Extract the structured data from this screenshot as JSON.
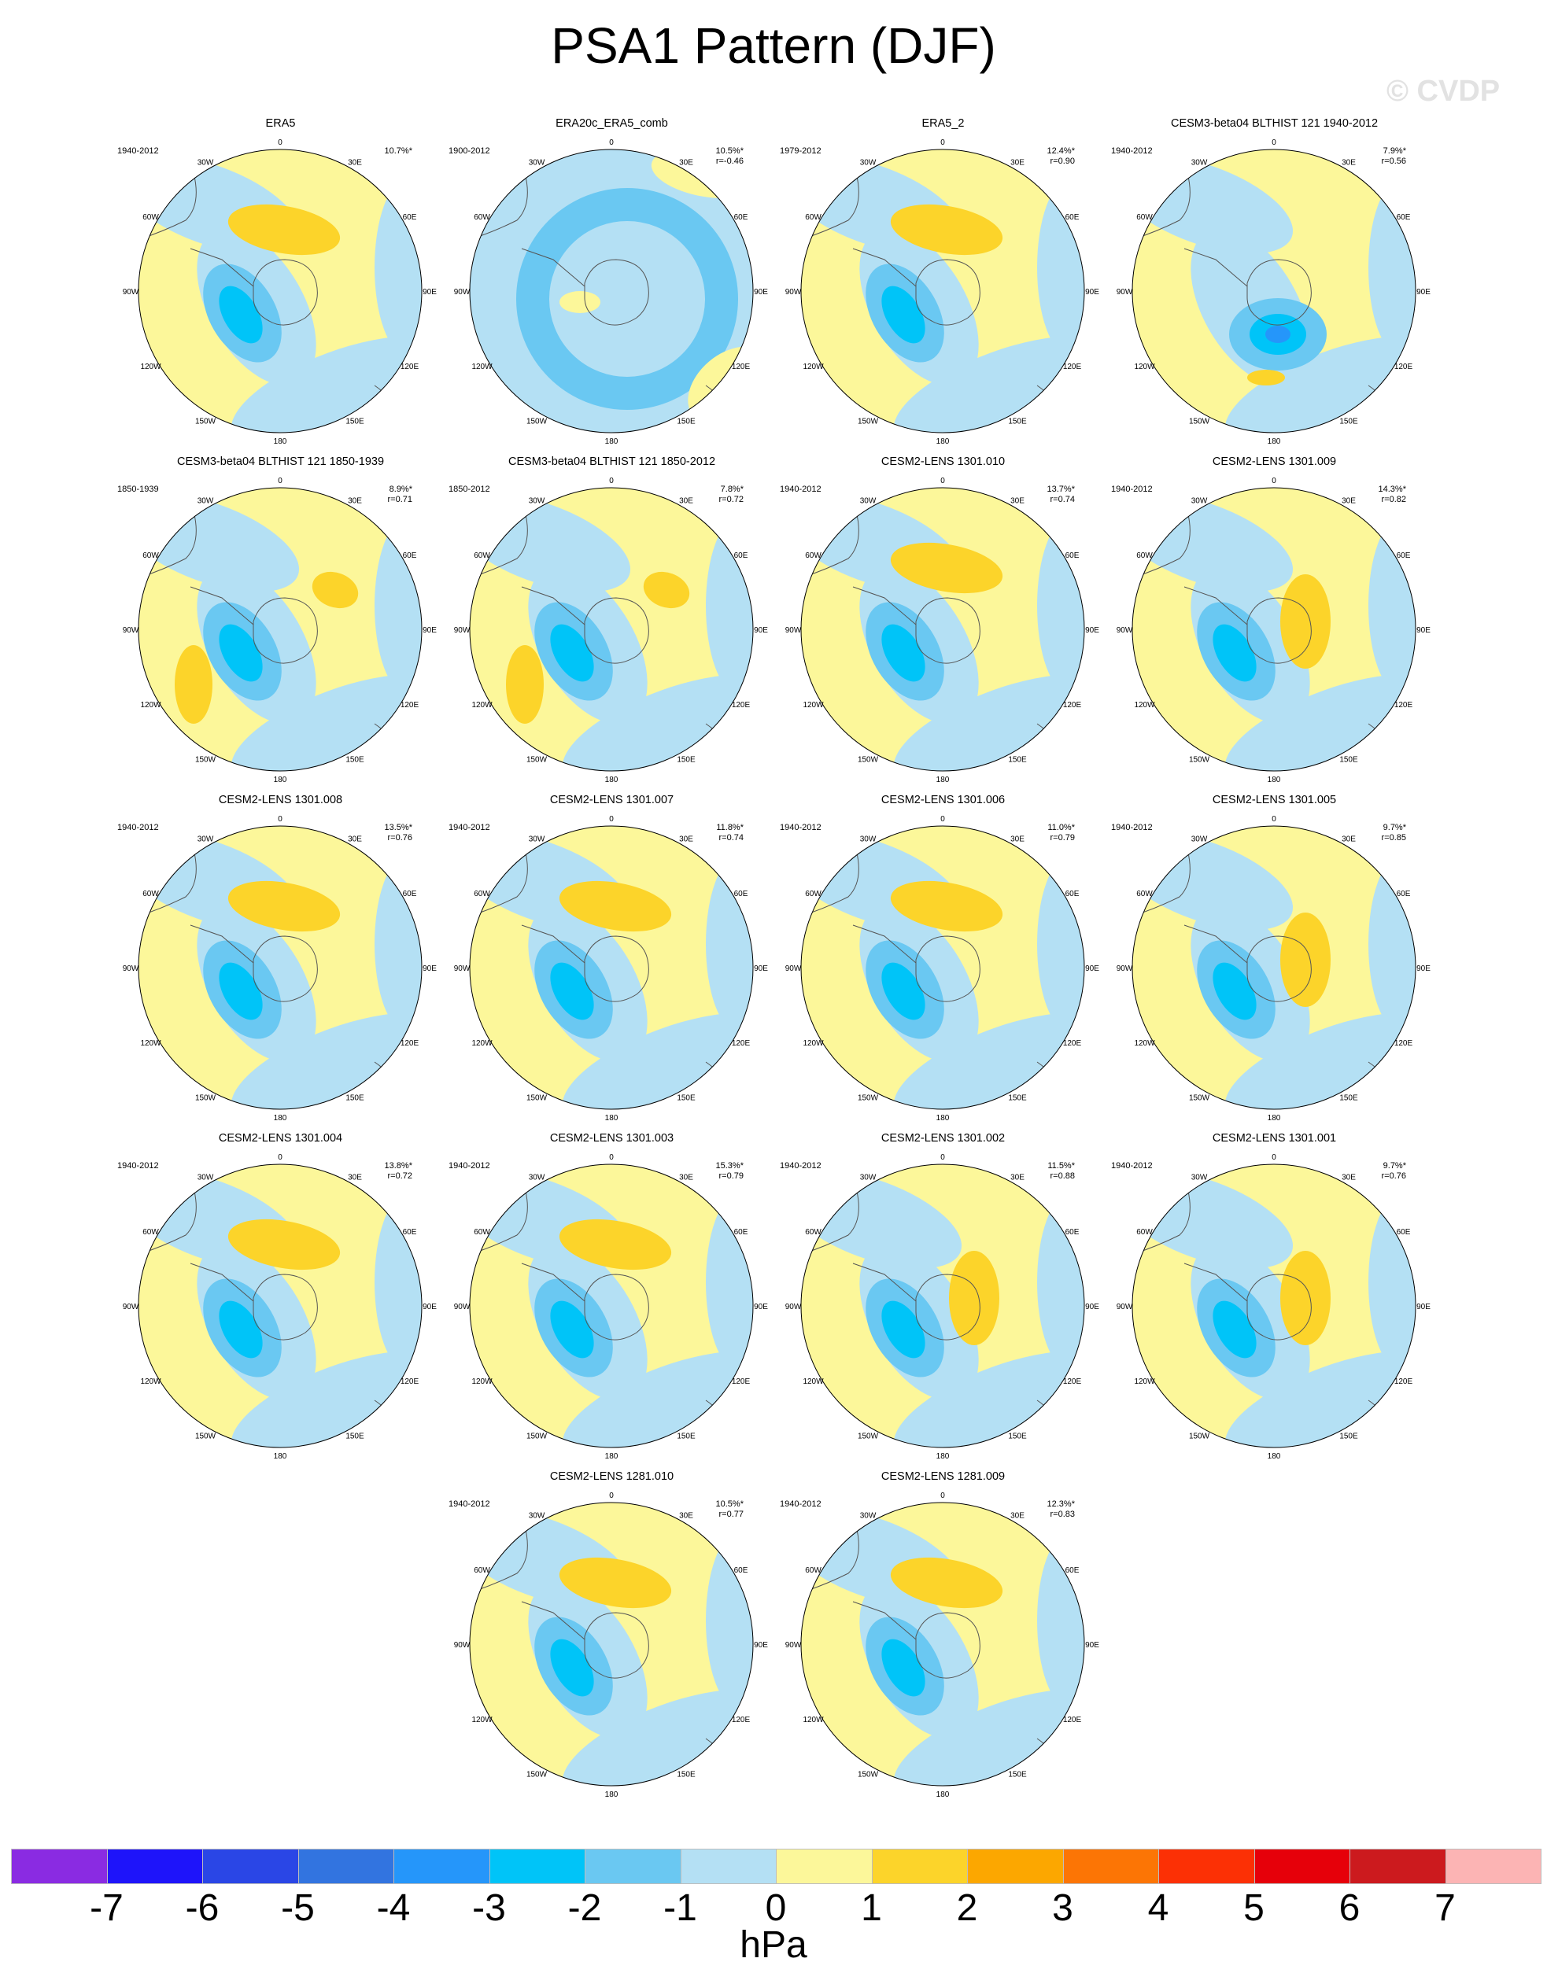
{
  "figure": {
    "title": "PSA1 Pattern (DJF)",
    "watermark": "© CVDP",
    "unit": "hPa"
  },
  "longitude_labels": [
    "0",
    "30E",
    "60E",
    "90E",
    "120E",
    "150E",
    "180",
    "150W",
    "120W",
    "90W",
    "60W",
    "30W"
  ],
  "panels": [
    {
      "title": "ERA5",
      "period": "1940-2012",
      "pct": "10.7%*",
      "r": "",
      "negative_center": "pacific",
      "positive_center": "atlantic"
    },
    {
      "title": "ERA20c_ERA5_comb",
      "period": "1900-2012",
      "pct": "10.5%*",
      "r": "r=-0.46",
      "negative_center": "ring",
      "positive_center": "none"
    },
    {
      "title": "ERA5_2",
      "period": "1979-2012",
      "pct": "12.4%*",
      "r": "r=0.90",
      "negative_center": "pacific",
      "positive_center": "atlantic"
    },
    {
      "title": "CESM3-beta04 BLTHIST 121 1940-2012",
      "period": "1940-2012",
      "pct": "7.9%*",
      "r": "r=0.56",
      "negative_center": "south",
      "positive_center": "weak"
    },
    {
      "title": "CESM3-beta04 BLTHIST 121 1850-1939",
      "period": "1850-1939",
      "pct": "8.9%*",
      "r": "r=0.71",
      "negative_center": "pacific",
      "positive_center": "indian"
    },
    {
      "title": "CESM3-beta04 BLTHIST 121 1850-2012",
      "period": "1850-2012",
      "pct": "7.8%*",
      "r": "r=0.72",
      "negative_center": "pacific",
      "positive_center": "indian"
    },
    {
      "title": "CESM2-LENS 1301.010",
      "period": "1940-2012",
      "pct": "13.7%*",
      "r": "r=0.74",
      "negative_center": "pacific",
      "positive_center": "atlantic"
    },
    {
      "title": "CESM2-LENS 1301.009",
      "period": "1940-2012",
      "pct": "14.3%*",
      "r": "r=0.82",
      "negative_center": "pacific",
      "positive_center": "continent"
    },
    {
      "title": "CESM2-LENS 1301.008",
      "period": "1940-2012",
      "pct": "13.5%*",
      "r": "r=0.76",
      "negative_center": "pacific",
      "positive_center": "atlantic"
    },
    {
      "title": "CESM2-LENS 1301.007",
      "period": "1940-2012",
      "pct": "11.8%*",
      "r": "r=0.74",
      "negative_center": "pacific",
      "positive_center": "atlantic"
    },
    {
      "title": "CESM2-LENS 1301.006",
      "period": "1940-2012",
      "pct": "11.0%*",
      "r": "r=0.79",
      "negative_center": "pacific",
      "positive_center": "atlantic"
    },
    {
      "title": "CESM2-LENS 1301.005",
      "period": "1940-2012",
      "pct": "9.7%*",
      "r": "r=0.85",
      "negative_center": "pacific",
      "positive_center": "continent"
    },
    {
      "title": "CESM2-LENS 1301.004",
      "period": "1940-2012",
      "pct": "13.8%*",
      "r": "r=0.72",
      "negative_center": "pacific",
      "positive_center": "atlantic"
    },
    {
      "title": "CESM2-LENS 1301.003",
      "period": "1940-2012",
      "pct": "15.3%*",
      "r": "r=0.79",
      "negative_center": "pacific",
      "positive_center": "atlantic"
    },
    {
      "title": "CESM2-LENS 1301.002",
      "period": "1940-2012",
      "pct": "11.5%*",
      "r": "r=0.88",
      "negative_center": "pacific",
      "positive_center": "continent"
    },
    {
      "title": "CESM2-LENS 1301.001",
      "period": "1940-2012",
      "pct": "9.7%*",
      "r": "r=0.76",
      "negative_center": "pacific",
      "positive_center": "continent"
    },
    {
      "title": "CESM2-LENS 1281.010",
      "period": "1940-2012",
      "pct": "10.5%*",
      "r": "r=0.77",
      "negative_center": "pacific",
      "positive_center": "atlantic"
    },
    {
      "title": "CESM2-LENS 1281.009",
      "period": "1940-2012",
      "pct": "12.3%*",
      "r": "r=0.83",
      "negative_center": "pacific",
      "positive_center": "atlantic"
    }
  ],
  "colorbar": {
    "labels": [
      "-7",
      "-6",
      "-5",
      "-4",
      "-3",
      "-2",
      "-1",
      "0",
      "1",
      "2",
      "3",
      "4",
      "5",
      "6",
      "7"
    ],
    "colors": [
      "#8a2be2",
      "#1e14fa",
      "#2a46e6",
      "#3274e0",
      "#2596fa",
      "#00c4f8",
      "#6ac8f2",
      "#b4e0f4",
      "#fcf79a",
      "#fcd42a",
      "#fca700",
      "#fc7505",
      "#fc3005",
      "#e6000a",
      "#cc1a1e",
      "#fcb4b4"
    ]
  },
  "colors": {
    "neg1": "#b4e0f4",
    "neg2": "#6ac8f2",
    "neg3": "#00c4f8",
    "neg4": "#2596fa",
    "pos1": "#fcf79a",
    "pos2": "#fcd42a",
    "coast": "#555555"
  }
}
